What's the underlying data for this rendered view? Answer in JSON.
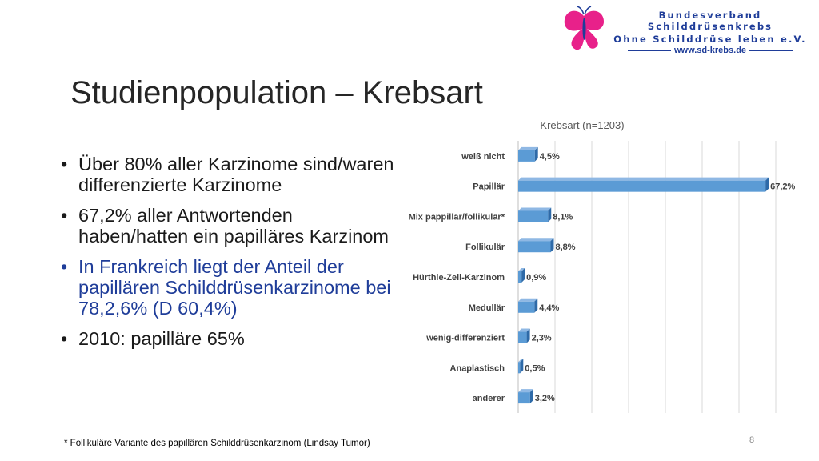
{
  "header": {
    "org_line1": "Bundesverband Schilddrüsenkrebs",
    "org_line2": "Ohne Schilddrüse leben e.V.",
    "org_url": "www.sd-krebs.de",
    "logo_color": "#e8218a"
  },
  "slide": {
    "title": "Studienpopulation – Krebsart",
    "bullets": [
      "Über 80% aller Karzinome sind/waren differenzierte Karzinome",
      "67,2% aller Antwortenden haben/hatten ein papilläres Karzinom",
      "In Frankreich liegt der Anteil der papillären Schilddrüsenkarzinome bei 78,2,6% (D 60,4%)",
      "2010: papilläre 65%"
    ],
    "footnote": "* Follikuläre Variante des papillären Schilddrüsenkarzinom (Lindsay Tumor)",
    "page_number": "8"
  },
  "chart_data": {
    "type": "bar",
    "orientation": "horizontal",
    "title": "Krebsart (n=1203)",
    "categories": [
      "weiß nicht",
      "Papillär",
      "Mix pappillär/follikulär*",
      "Follikulär",
      "Hürthle-Zell-Karzinom",
      "Medullär",
      "wenig-differenziert",
      "Anaplastisch",
      "anderer"
    ],
    "values": [
      4.5,
      67.2,
      8.1,
      8.8,
      0.9,
      4.4,
      2.3,
      0.5,
      3.2
    ],
    "data_labels": [
      "4,5%",
      "67,2%",
      "8,1%",
      "8,8%",
      "0,9%",
      "4,4%",
      "2,3%",
      "0,5%",
      "3,2%"
    ],
    "xlim": [
      0,
      70
    ],
    "grid": true,
    "bar_color": "#5b9bd5",
    "bar_side_color": "#2e6aa8"
  }
}
